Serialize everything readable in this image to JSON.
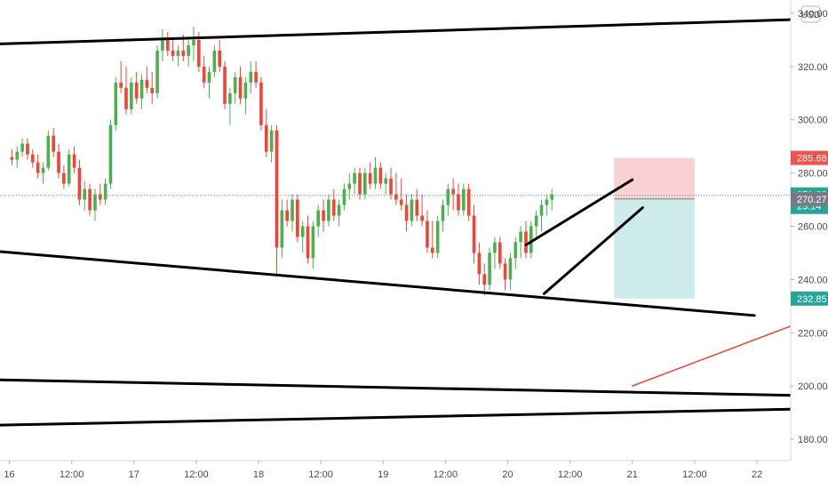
{
  "chart_data": {
    "type": "candlestick",
    "currency": "USD",
    "ylim": [
      172,
      345
    ],
    "y_ticks": [
      "340.00",
      "320.00",
      "300.00",
      "280.00",
      "260.00",
      "240.00",
      "220.00",
      "200.00",
      "180.00"
    ],
    "y_tick_values": [
      340,
      320,
      300,
      280,
      260,
      240,
      220,
      200,
      180
    ],
    "x_ticks": [
      "16",
      "12:00",
      "17",
      "12:00",
      "18",
      "12:00",
      "19",
      "12:00",
      "20",
      "12:00",
      "21",
      "12:00",
      "22"
    ],
    "x_tick_hours": [
      0,
      12,
      24,
      36,
      48,
      60,
      72,
      84,
      96,
      108,
      120,
      132,
      144
    ],
    "x_start_hour": -1.8,
    "x_end_hour": 150.5,
    "candle_hours": 1,
    "ohlc": [
      [
        286,
        289,
        283,
        285
      ],
      [
        285,
        290,
        282,
        288
      ],
      [
        288,
        293,
        286,
        291
      ],
      [
        291,
        293,
        285,
        287
      ],
      [
        287,
        289,
        282,
        284
      ],
      [
        284,
        287,
        278,
        280
      ],
      [
        280,
        284,
        276,
        282
      ],
      [
        282,
        296,
        281,
        294
      ],
      [
        294,
        297,
        286,
        288
      ],
      [
        288,
        291,
        278,
        280
      ],
      [
        280,
        283,
        274,
        276
      ],
      [
        276,
        289,
        275,
        287
      ],
      [
        287,
        290,
        280,
        282
      ],
      [
        282,
        285,
        268,
        270
      ],
      [
        270,
        277,
        266,
        274
      ],
      [
        274,
        276,
        264,
        266
      ],
      [
        266,
        274,
        262,
        272
      ],
      [
        272,
        276,
        268,
        270
      ],
      [
        270,
        278,
        268,
        276
      ],
      [
        276,
        300,
        274,
        298
      ],
      [
        298,
        316,
        296,
        314
      ],
      [
        314,
        322,
        310,
        312
      ],
      [
        312,
        320,
        302,
        304
      ],
      [
        304,
        316,
        302,
        314
      ],
      [
        314,
        318,
        306,
        308
      ],
      [
        308,
        317,
        304,
        315
      ],
      [
        315,
        320,
        310,
        312
      ],
      [
        312,
        318,
        306,
        310
      ],
      [
        310,
        328,
        308,
        326
      ],
      [
        326,
        334,
        322,
        330
      ],
      [
        330,
        333,
        324,
        326
      ],
      [
        326,
        330,
        322,
        324
      ],
      [
        324,
        328,
        320,
        326
      ],
      [
        326,
        332,
        322,
        324
      ],
      [
        324,
        330,
        320,
        328
      ],
      [
        328,
        335,
        322,
        330
      ],
      [
        330,
        333,
        318,
        320
      ],
      [
        320,
        324,
        312,
        314
      ],
      [
        314,
        320,
        308,
        318
      ],
      [
        318,
        328,
        316,
        326
      ],
      [
        326,
        330,
        318,
        320
      ],
      [
        320,
        322,
        304,
        306
      ],
      [
        306,
        312,
        298,
        310
      ],
      [
        310,
        318,
        306,
        316
      ],
      [
        316,
        320,
        306,
        308
      ],
      [
        308,
        316,
        302,
        314
      ],
      [
        314,
        322,
        310,
        318
      ],
      [
        318,
        322,
        312,
        314
      ],
      [
        314,
        316,
        296,
        298
      ],
      [
        298,
        304,
        286,
        288
      ],
      [
        288,
        298,
        284,
        296
      ],
      [
        296,
        298,
        242,
        252
      ],
      [
        252,
        270,
        248,
        266
      ],
      [
        266,
        270,
        260,
        262
      ],
      [
        262,
        272,
        258,
        270
      ],
      [
        270,
        272,
        254,
        256
      ],
      [
        256,
        262,
        250,
        260
      ],
      [
        260,
        264,
        246,
        248
      ],
      [
        248,
        262,
        244,
        260
      ],
      [
        260,
        268,
        256,
        266
      ],
      [
        266,
        270,
        258,
        262
      ],
      [
        262,
        272,
        260,
        270
      ],
      [
        270,
        274,
        262,
        264
      ],
      [
        264,
        270,
        260,
        268
      ],
      [
        268,
        276,
        266,
        274
      ],
      [
        274,
        280,
        270,
        276
      ],
      [
        276,
        282,
        272,
        280
      ],
      [
        280,
        282,
        270,
        272
      ],
      [
        272,
        282,
        270,
        280
      ],
      [
        280,
        284,
        274,
        276
      ],
      [
        276,
        286,
        274,
        282
      ],
      [
        282,
        284,
        274,
        276
      ],
      [
        276,
        280,
        272,
        278
      ],
      [
        278,
        282,
        270,
        272
      ],
      [
        272,
        280,
        268,
        270
      ],
      [
        270,
        278,
        266,
        268
      ],
      [
        268,
        272,
        258,
        262
      ],
      [
        262,
        272,
        260,
        270
      ],
      [
        270,
        274,
        262,
        264
      ],
      [
        264,
        272,
        260,
        262
      ],
      [
        262,
        266,
        250,
        252
      ],
      [
        252,
        262,
        248,
        250
      ],
      [
        250,
        264,
        248,
        262
      ],
      [
        262,
        270,
        258,
        268
      ],
      [
        268,
        276,
        264,
        274
      ],
      [
        274,
        278,
        266,
        272
      ],
      [
        272,
        276,
        264,
        266
      ],
      [
        266,
        276,
        264,
        274
      ],
      [
        274,
        276,
        262,
        264
      ],
      [
        264,
        268,
        246,
        250
      ],
      [
        250,
        254,
        238,
        242
      ],
      [
        242,
        246,
        234,
        238
      ],
      [
        238,
        252,
        236,
        250
      ],
      [
        250,
        256,
        244,
        254
      ],
      [
        254,
        256,
        244,
        246
      ],
      [
        246,
        248,
        236,
        240
      ],
      [
        240,
        250,
        236,
        248
      ],
      [
        248,
        256,
        244,
        254
      ],
      [
        254,
        260,
        248,
        258
      ],
      [
        258,
        262,
        248,
        250
      ],
      [
        250,
        262,
        248,
        260
      ],
      [
        260,
        266,
        256,
        264
      ],
      [
        264,
        270,
        258,
        268
      ],
      [
        268,
        272,
        264,
        270
      ],
      [
        270,
        274,
        266,
        272
      ]
    ],
    "trendlines": [
      {
        "points": [
          [
            -1.8,
            328.5
          ],
          [
            150.5,
            337.6
          ]
        ],
        "color": "#000000"
      },
      {
        "points": [
          [
            -1.8,
            250.5
          ],
          [
            143.5,
            226.5
          ]
        ],
        "color": "#000000"
      },
      {
        "points": [
          [
            -1.8,
            202.3
          ],
          [
            150.5,
            196.5
          ]
        ],
        "color": "#000000"
      },
      {
        "points": [
          [
            -1.8,
            185.3
          ],
          [
            150.5,
            191.3
          ]
        ],
        "color": "#000000"
      },
      {
        "points": [
          [
            99.5,
            253.0
          ],
          [
            120.0,
            277.5
          ]
        ],
        "color": "#000000"
      },
      {
        "points": [
          [
            103.0,
            234.7
          ],
          [
            122.0,
            267.0
          ]
        ],
        "color": "#000000"
      },
      {
        "points": [
          [
            120.0,
            200.0
          ],
          [
            150.5,
            222.5
          ]
        ],
        "color": "#e74c3c"
      }
    ],
    "position": {
      "x_from": 116.5,
      "x_to": 132.0,
      "entry": 270.27,
      "stop": 285.68,
      "target": 232.85
    },
    "price_labels": [
      {
        "value": 285.68,
        "text": "285.68",
        "color": "#ef5350"
      },
      {
        "value": 271.62,
        "text": "271.62",
        "color": "#26a69a",
        "sub": "23:14"
      },
      {
        "value": 270.27,
        "text": "270.27",
        "color": "#787b86"
      },
      {
        "value": 232.85,
        "text": "232.85",
        "color": "#26a69a"
      }
    ],
    "last_price": 271.62,
    "colors": {
      "up": "#26a69a",
      "down": "#ef5350",
      "up_candle": "#4caf50",
      "down_candle": "#f44336",
      "stop_zone": "#f9d0d3",
      "target_zone": "#cdebea"
    }
  }
}
